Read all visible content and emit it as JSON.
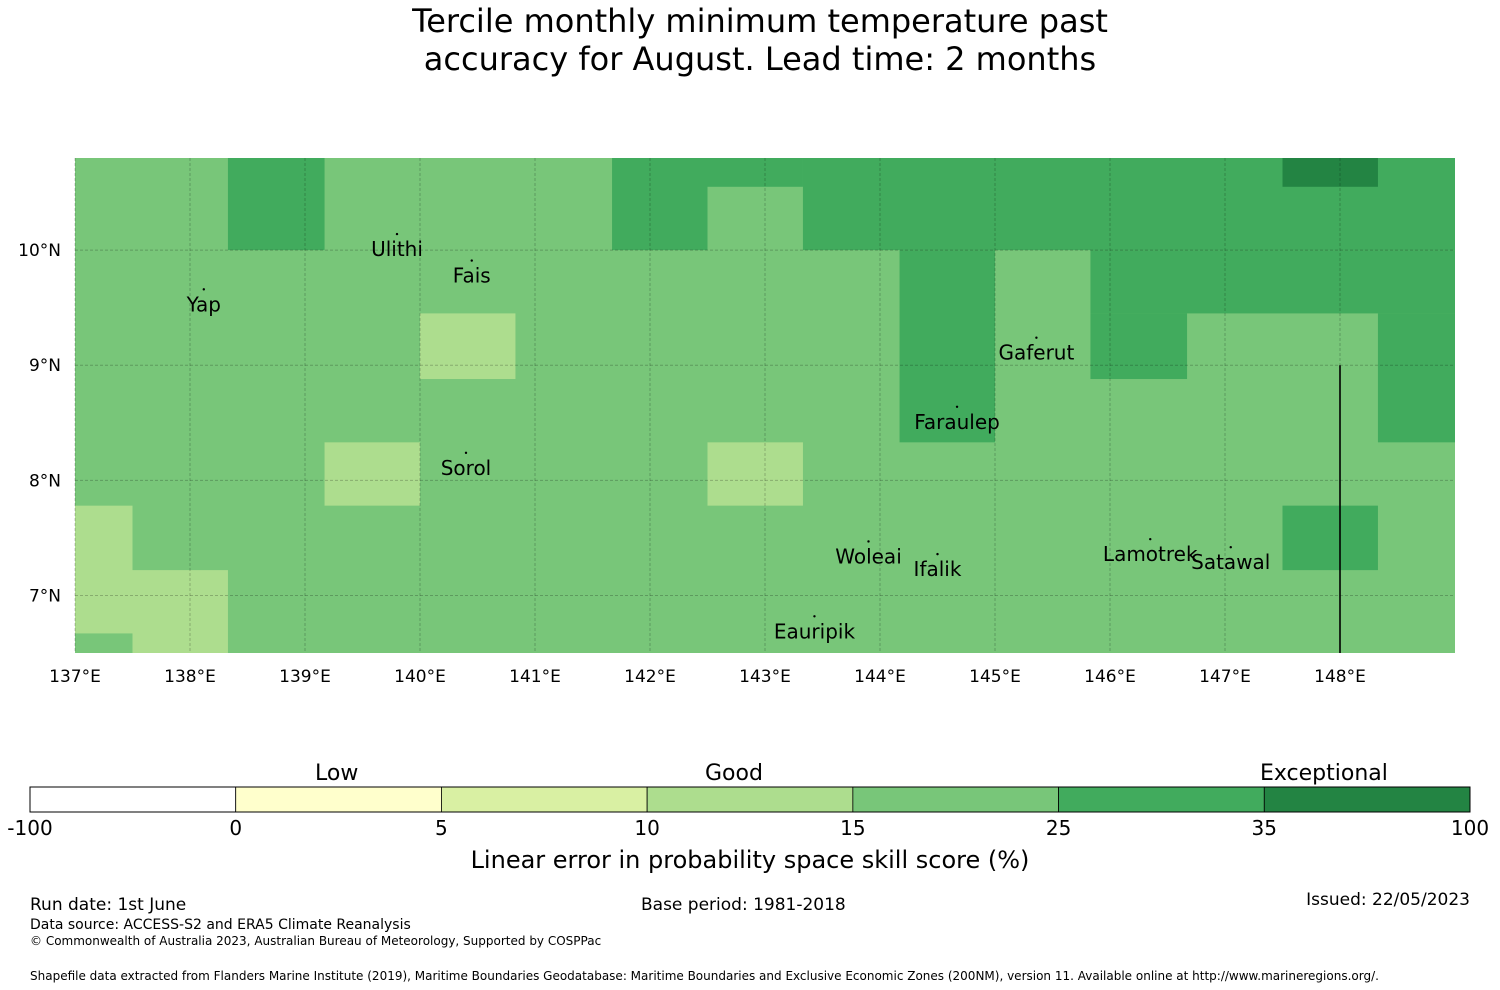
{
  "title": {
    "line1": "Tercile monthly minimum temperature past",
    "line2": "accuracy for August. Lead time: 2 months"
  },
  "map": {
    "lon_range": [
      137.0,
      149.0
    ],
    "lat_range": [
      6.5,
      10.8
    ],
    "x_ticks": [
      {
        "lon": 137,
        "label": "137°E"
      },
      {
        "lon": 138,
        "label": "138°E"
      },
      {
        "lon": 139,
        "label": "139°E"
      },
      {
        "lon": 140,
        "label": "140°E"
      },
      {
        "lon": 141,
        "label": "141°E"
      },
      {
        "lon": 142,
        "label": "142°E"
      },
      {
        "lon": 143,
        "label": "143°E"
      },
      {
        "lon": 144,
        "label": "144°E"
      },
      {
        "lon": 145,
        "label": "145°E"
      },
      {
        "lon": 146,
        "label": "146°E"
      },
      {
        "lon": 147,
        "label": "147°E"
      },
      {
        "lon": 148,
        "label": "148°E"
      }
    ],
    "y_ticks": [
      {
        "lat": 10,
        "label": "10°N"
      },
      {
        "lat": 9,
        "label": "9°N"
      },
      {
        "lat": 8,
        "label": "8°N"
      },
      {
        "lat": 7,
        "label": "7°N"
      }
    ],
    "grid": true,
    "boundary_line": {
      "lon": 148.0,
      "lat_from": 6.5,
      "lat_to": 9.0
    },
    "cells": [
      {
        "lon0": 137.0,
        "lon1": 149.0,
        "lat0": 6.5,
        "lat1": 10.8,
        "cls": 4
      },
      {
        "lon0": 138.33,
        "lon1": 139.17,
        "lat0": 10.0,
        "lat1": 10.8,
        "cls": 5
      },
      {
        "lon0": 141.67,
        "lon1": 142.5,
        "lat0": 10.0,
        "lat1": 10.8,
        "cls": 5
      },
      {
        "lon0": 142.5,
        "lon1": 143.33,
        "lat0": 10.55,
        "lat1": 10.8,
        "cls": 5
      },
      {
        "lon0": 143.33,
        "lon1": 149.0,
        "lat0": 10.0,
        "lat1": 10.8,
        "cls": 5
      },
      {
        "lon0": 147.5,
        "lon1": 148.33,
        "lat0": 10.55,
        "lat1": 10.8,
        "cls": 6
      },
      {
        "lon0": 144.17,
        "lon1": 145.0,
        "lat0": 8.33,
        "lat1": 10.0,
        "cls": 5
      },
      {
        "lon0": 145.83,
        "lon1": 149.0,
        "lat0": 9.45,
        "lat1": 10.0,
        "cls": 5
      },
      {
        "lon0": 145.83,
        "lon1": 146.67,
        "lat0": 8.88,
        "lat1": 9.45,
        "cls": 5
      },
      {
        "lon0": 148.33,
        "lon1": 149.0,
        "lat0": 8.33,
        "lat1": 9.45,
        "cls": 5
      },
      {
        "lon0": 147.5,
        "lon1": 148.33,
        "lat0": 7.22,
        "lat1": 7.78,
        "cls": 5
      },
      {
        "lon0": 140.0,
        "lon1": 140.83,
        "lat0": 8.88,
        "lat1": 9.45,
        "cls": 3
      },
      {
        "lon0": 139.17,
        "lon1": 140.0,
        "lat0": 7.78,
        "lat1": 8.33,
        "cls": 3
      },
      {
        "lon0": 142.5,
        "lon1": 143.33,
        "lat0": 7.78,
        "lat1": 8.33,
        "cls": 3
      },
      {
        "lon0": 137.0,
        "lon1": 137.5,
        "lat0": 6.67,
        "lat1": 7.78,
        "cls": 3
      },
      {
        "lon0": 137.5,
        "lon1": 138.33,
        "lat0": 6.5,
        "lat1": 7.22,
        "cls": 3
      }
    ],
    "places": [
      {
        "name": "Ulithi",
        "lon": 139.8,
        "lat": 10.0
      },
      {
        "name": "Fais",
        "lon": 140.45,
        "lat": 9.77
      },
      {
        "name": "Yap",
        "lon": 138.12,
        "lat": 9.52
      },
      {
        "name": "Gaferut",
        "lon": 145.36,
        "lat": 9.1
      },
      {
        "name": "Faraulep",
        "lon": 144.67,
        "lat": 8.5
      },
      {
        "name": "Sorol",
        "lon": 140.4,
        "lat": 8.1
      },
      {
        "name": "Woleai",
        "lon": 143.9,
        "lat": 7.33
      },
      {
        "name": "Ifalik",
        "lon": 144.5,
        "lat": 7.22
      },
      {
        "name": "Lamotrek",
        "lon": 146.35,
        "lat": 7.35
      },
      {
        "name": "Satawal",
        "lon": 147.05,
        "lat": 7.28
      },
      {
        "name": "Eauripik",
        "lon": 143.43,
        "lat": 6.68
      }
    ]
  },
  "colorbar": {
    "bins": [
      {
        "from": "-100",
        "to": "0",
        "color": "#ffffff"
      },
      {
        "from": "0",
        "to": "5",
        "color": "#ffffcc"
      },
      {
        "from": "5",
        "to": "10",
        "color": "#d9f0a3"
      },
      {
        "from": "10",
        "to": "15",
        "color": "#addd8e"
      },
      {
        "from": "15",
        "to": "25",
        "color": "#78c679"
      },
      {
        "from": "25",
        "to": "35",
        "color": "#41ab5d"
      },
      {
        "from": "35",
        "to": "100",
        "color": "#238443"
      }
    ],
    "tick_labels": [
      "-100",
      "0",
      "5",
      "10",
      "15",
      "25",
      "35",
      "100"
    ],
    "category_low": "Low",
    "category_good": "Good",
    "category_exceptional": "Exceptional",
    "title": "Linear error in probability space skill score (%)"
  },
  "footer": {
    "run_date": "Run date: 1st June",
    "base_period": "Base period: 1981-2018",
    "issued": "Issued: 22/05/2023",
    "data_source": "Data source: ACCESS-S2 and ERA5 Climate Reanalysis",
    "copyright": "© Commonwealth of Australia 2023, Australian Bureau of Meteorology, Supported by COSPPac",
    "shapefile": "Shapefile data extracted from Flanders Marine Institute (2019), Maritime Boundaries Geodatabase: Maritime Boundaries and Exclusive Economic Zones (200NM), version 11. Available online at http://www.marineregions.org/."
  }
}
